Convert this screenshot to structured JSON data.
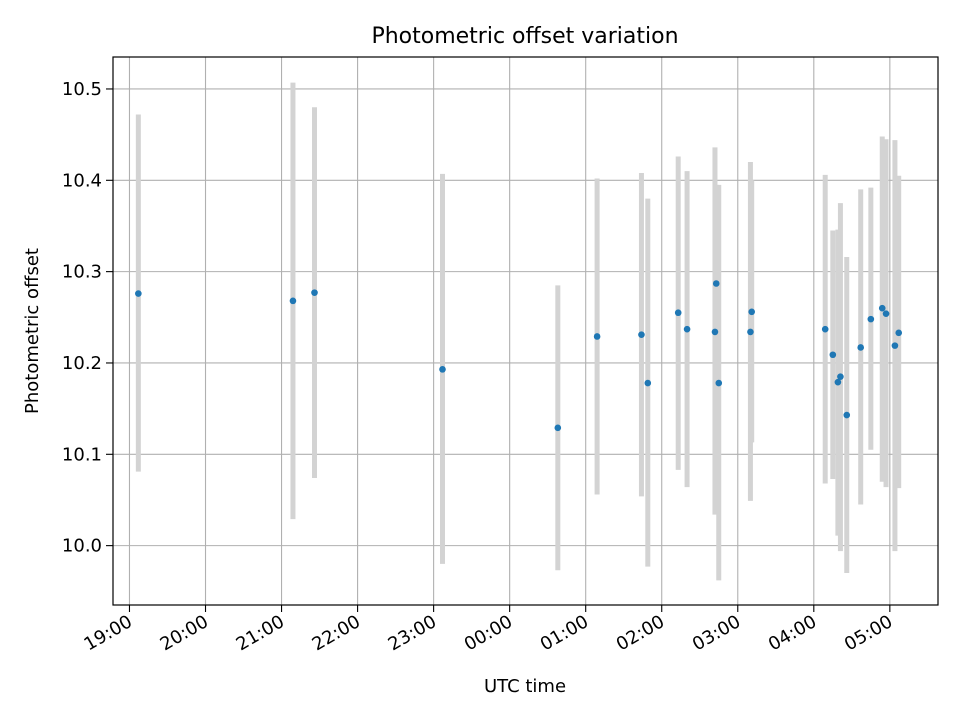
{
  "chart_data": {
    "type": "scatter",
    "title": "Photometric offset variation",
    "xlabel": "UTC time",
    "ylabel": "Photometric offset",
    "grid": true,
    "xlim": [
      "18:47",
      "05:38"
    ],
    "ylim": [
      9.935,
      10.535
    ],
    "x_ticks": [
      "19:00",
      "20:00",
      "21:00",
      "22:00",
      "23:00",
      "00:00",
      "01:00",
      "02:00",
      "03:00",
      "04:00",
      "05:00"
    ],
    "y_ticks": [
      "10.0",
      "10.1",
      "10.2",
      "10.3",
      "10.4",
      "10.5"
    ],
    "series": [
      {
        "marker_color": "#1f77b4",
        "errorbar_color": "#d3d3d3",
        "points": [
          {
            "x": "19:07",
            "y": 10.276,
            "low": 10.081,
            "high": 10.472
          },
          {
            "x": "21:09",
            "y": 10.268,
            "low": 10.029,
            "high": 10.507
          },
          {
            "x": "21:26",
            "y": 10.277,
            "low": 10.074,
            "high": 10.48
          },
          {
            "x": "23:07",
            "y": 10.193,
            "low": 9.98,
            "high": 10.407
          },
          {
            "x": "00:38",
            "y": 10.129,
            "low": 9.973,
            "high": 10.285
          },
          {
            "x": "01:09",
            "y": 10.229,
            "low": 10.056,
            "high": 10.402
          },
          {
            "x": "01:44",
            "y": 10.231,
            "low": 10.054,
            "high": 10.408
          },
          {
            "x": "01:49",
            "y": 10.178,
            "low": 9.977,
            "high": 10.38
          },
          {
            "x": "02:13",
            "y": 10.255,
            "low": 10.083,
            "high": 10.426
          },
          {
            "x": "02:20",
            "y": 10.237,
            "low": 10.064,
            "high": 10.41
          },
          {
            "x": "02:42",
            "y": 10.234,
            "low": 10.034,
            "high": 10.436
          },
          {
            "x": "02:43",
            "y": 10.287,
            "low": 10.18,
            "high": 10.395
          },
          {
            "x": "02:45",
            "y": 10.178,
            "low": 9.962,
            "high": 10.395
          },
          {
            "x": "03:10",
            "y": 10.234,
            "low": 10.049,
            "high": 10.42
          },
          {
            "x": "03:11",
            "y": 10.256,
            "low": 10.113,
            "high": 10.4
          },
          {
            "x": "04:09",
            "y": 10.237,
            "low": 10.068,
            "high": 10.406
          },
          {
            "x": "04:15",
            "y": 10.209,
            "low": 10.073,
            "high": 10.345
          },
          {
            "x": "04:19",
            "y": 10.179,
            "low": 10.011,
            "high": 10.346
          },
          {
            "x": "04:21",
            "y": 10.185,
            "low": 9.994,
            "high": 10.375
          },
          {
            "x": "04:26",
            "y": 10.143,
            "low": 9.97,
            "high": 10.316
          },
          {
            "x": "04:37",
            "y": 10.217,
            "low": 10.045,
            "high": 10.39
          },
          {
            "x": "04:45",
            "y": 10.248,
            "low": 10.105,
            "high": 10.392
          },
          {
            "x": "04:54",
            "y": 10.26,
            "low": 10.07,
            "high": 10.448
          },
          {
            "x": "04:57",
            "y": 10.254,
            "low": 10.064,
            "high": 10.445
          },
          {
            "x": "05:04",
            "y": 10.219,
            "low": 9.994,
            "high": 10.444
          },
          {
            "x": "05:07",
            "y": 10.233,
            "low": 10.063,
            "high": 10.405
          }
        ]
      }
    ]
  }
}
